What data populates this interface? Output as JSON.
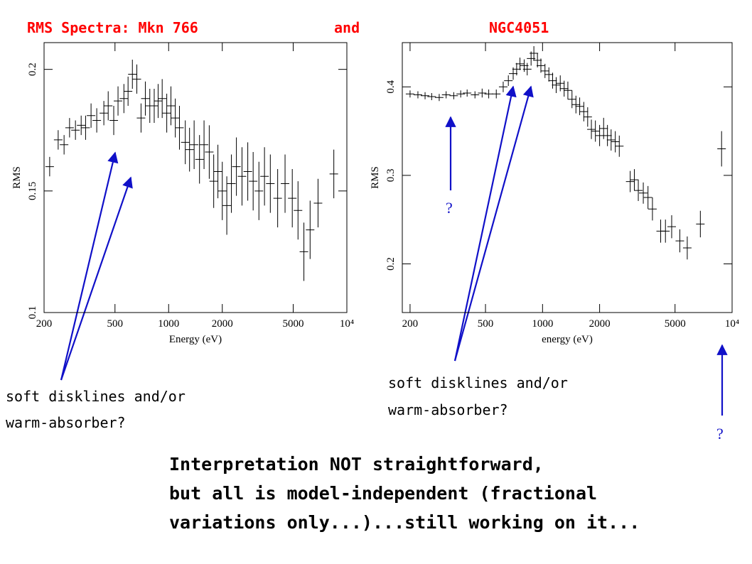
{
  "slide": {
    "title": [
      "RMS Spectra: Mkn 766",
      "and",
      "NGC4051"
    ],
    "notes": [
      [
        "soft disklines and/or",
        "warm-absorber?"
      ],
      [
        "soft disklines and/or",
        "warm-absorber?"
      ]
    ],
    "questions": [
      "?",
      "?"
    ],
    "conclusion": [
      "Interpretation NOT straightforward,",
      "but all is model-independent (fractional",
      "variations only...)...still working on it..."
    ]
  },
  "chart_data": [
    {
      "type": "errorbar",
      "xlabel": "Energy (eV)",
      "ylabel": "RMS",
      "xlog": true,
      "color": "#000000",
      "xlim": [
        200,
        10000
      ],
      "ylim": [
        0.1,
        0.211
      ],
      "xticks": [
        200,
        500,
        1000,
        2000,
        5000,
        {
          "value": 10000,
          "label": "10⁴"
        }
      ],
      "yticks": [
        0.1,
        0.15,
        0.2
      ],
      "x": [
        215,
        240,
        259,
        278,
        300,
        323,
        342,
        367,
        395,
        433,
        458,
        492,
        520,
        561,
        592,
        626,
        663,
        700,
        740,
        784,
        830,
        873,
        920,
        976,
        1030,
        1090,
        1150,
        1240,
        1310,
        1390,
        1490,
        1580,
        1690,
        1790,
        1890,
        2000,
        2120,
        2250,
        2400,
        2580,
        2780,
        2980,
        3210,
        3450,
        3720,
        4090,
        4500,
        4940,
        5320,
        5740,
        6220,
        6890,
        8450
      ],
      "values": [
        0.16,
        0.171,
        0.169,
        0.176,
        0.175,
        0.177,
        0.176,
        0.181,
        0.179,
        0.182,
        0.185,
        0.179,
        0.187,
        0.188,
        0.191,
        0.198,
        0.196,
        0.18,
        0.188,
        0.185,
        0.185,
        0.187,
        0.188,
        0.182,
        0.185,
        0.18,
        0.176,
        0.17,
        0.167,
        0.169,
        0.163,
        0.169,
        0.166,
        0.154,
        0.158,
        0.15,
        0.144,
        0.153,
        0.16,
        0.156,
        0.158,
        0.154,
        0.15,
        0.156,
        0.153,
        0.147,
        0.153,
        0.147,
        0.142,
        0.125,
        0.134,
        0.145,
        0.157
      ],
      "errors": [
        0.004,
        0.004,
        0.004,
        0.004,
        0.004,
        0.004,
        0.005,
        0.005,
        0.005,
        0.005,
        0.006,
        0.006,
        0.006,
        0.006,
        0.006,
        0.006,
        0.006,
        0.006,
        0.007,
        0.007,
        0.007,
        0.007,
        0.008,
        0.008,
        0.008,
        0.008,
        0.009,
        0.009,
        0.009,
        0.01,
        0.01,
        0.01,
        0.011,
        0.011,
        0.011,
        0.012,
        0.012,
        0.012,
        0.012,
        0.012,
        0.012,
        0.012,
        0.012,
        0.012,
        0.012,
        0.012,
        0.012,
        0.012,
        0.012,
        0.012,
        0.012,
        0.01,
        0.01
      ]
    },
    {
      "type": "errorbar",
      "xlabel": "energy (eV)",
      "ylabel": "RMS",
      "xlog": true,
      "color": "#000000",
      "xlim": [
        182,
        10000
      ],
      "ylim": [
        0.145,
        0.45
      ],
      "xticks": [
        200,
        500,
        1000,
        2000,
        5000,
        {
          "value": 10000,
          "label": "10⁴"
        }
      ],
      "yticks": [
        0.2,
        0.3,
        0.4
      ],
      "x": [
        200,
        220,
        240,
        260,
        285,
        310,
        340,
        370,
        400,
        440,
        480,
        520,
        570,
        620,
        660,
        700,
        730,
        760,
        800,
        830,
        870,
        900,
        940,
        980,
        1030,
        1080,
        1130,
        1180,
        1240,
        1300,
        1360,
        1430,
        1500,
        1570,
        1650,
        1730,
        1810,
        1900,
        2000,
        2100,
        2200,
        2300,
        2420,
        2540,
        2900,
        3050,
        3200,
        3400,
        3600,
        3800,
        4200,
        4450,
        4800,
        5300,
        5800,
        6800,
        8800
      ],
      "values": [
        0.392,
        0.391,
        0.39,
        0.389,
        0.388,
        0.391,
        0.39,
        0.392,
        0.393,
        0.391,
        0.393,
        0.392,
        0.392,
        0.4,
        0.407,
        0.415,
        0.42,
        0.426,
        0.424,
        0.42,
        0.432,
        0.438,
        0.43,
        0.424,
        0.418,
        0.414,
        0.407,
        0.402,
        0.404,
        0.398,
        0.396,
        0.386,
        0.38,
        0.378,
        0.372,
        0.366,
        0.352,
        0.35,
        0.345,
        0.353,
        0.345,
        0.34,
        0.338,
        0.333,
        0.293,
        0.295,
        0.283,
        0.28,
        0.275,
        0.262,
        0.237,
        0.237,
        0.242,
        0.226,
        0.218,
        0.245,
        0.33
      ],
      "errors": [
        0.004,
        0.004,
        0.004,
        0.004,
        0.004,
        0.004,
        0.004,
        0.004,
        0.004,
        0.004,
        0.005,
        0.005,
        0.005,
        0.006,
        0.006,
        0.007,
        0.007,
        0.007,
        0.007,
        0.007,
        0.008,
        0.008,
        0.008,
        0.008,
        0.008,
        0.008,
        0.009,
        0.009,
        0.009,
        0.009,
        0.01,
        0.01,
        0.01,
        0.01,
        0.011,
        0.011,
        0.011,
        0.012,
        0.012,
        0.012,
        0.012,
        0.012,
        0.012,
        0.012,
        0.012,
        0.012,
        0.012,
        0.012,
        0.013,
        0.013,
        0.013,
        0.013,
        0.013,
        0.013,
        0.013,
        0.015,
        0.02
      ]
    }
  ]
}
